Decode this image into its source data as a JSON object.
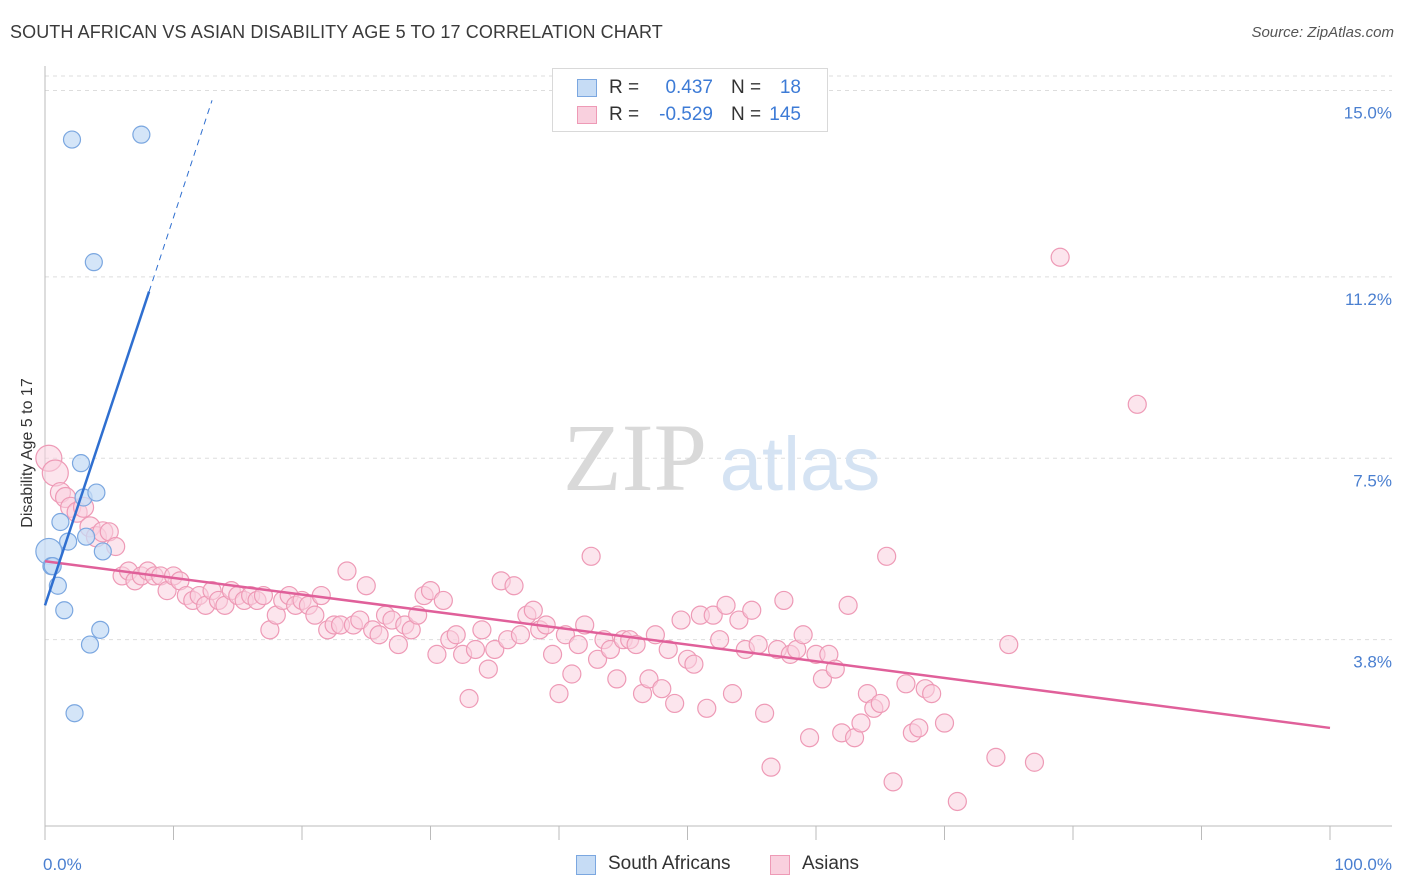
{
  "title": "SOUTH AFRICAN VS ASIAN DISABILITY AGE 5 TO 17 CORRELATION CHART",
  "source": "Source: ZipAtlas.com",
  "watermark": {
    "zip": "ZIP",
    "atlas": "atlas"
  },
  "legend": {
    "rows": [
      {
        "r_label": "R =",
        "r_value": "0.437",
        "n_label": "N =",
        "n_value": "18"
      },
      {
        "r_label": "R =",
        "r_value": "-0.529",
        "n_label": "N =",
        "n_value": "145"
      }
    ]
  },
  "bottom_legend": {
    "south_africans": "South Africans",
    "asians": "Asians"
  },
  "colors": {
    "south_african_fill": "#c6dcf5",
    "south_african_stroke": "#7ba7e0",
    "south_african_line": "#2f6fd0",
    "asian_fill": "#f9d0de",
    "asian_stroke": "#ee9ab6",
    "asian_line": "#e0609a",
    "tick_label": "#4a7fd0",
    "grid": "#dddddd"
  },
  "chart_data": {
    "type": "scatter",
    "xlabel": "",
    "ylabel": "Disability Age 5 to 17",
    "xlim": [
      0,
      100
    ],
    "ylim": [
      0,
      15.5
    ],
    "x_tick_labels": [
      "0.0%",
      "100.0%"
    ],
    "y_ticks": [
      {
        "value": 3.8,
        "label": "3.8%"
      },
      {
        "value": 7.5,
        "label": "7.5%"
      },
      {
        "value": 11.2,
        "label": "11.2%"
      },
      {
        "value": 15.0,
        "label": "15.0%"
      }
    ],
    "series": [
      {
        "name": "South Africans",
        "r": 0.437,
        "n": 18,
        "trend": {
          "x0": 0,
          "y0": 4.5,
          "x1": 8.1,
          "y1": 10.9,
          "dash_to_x": 13.0,
          "dash_to_y": 14.8
        },
        "points": [
          [
            0.3,
            5.6
          ],
          [
            0.5,
            5.3
          ],
          [
            0.6,
            5.3
          ],
          [
            1.0,
            4.9
          ],
          [
            1.2,
            6.2
          ],
          [
            1.5,
            4.4
          ],
          [
            1.8,
            5.8
          ],
          [
            2.1,
            14.0
          ],
          [
            2.8,
            7.4
          ],
          [
            3.0,
            6.7
          ],
          [
            3.2,
            5.9
          ],
          [
            3.5,
            3.7
          ],
          [
            3.8,
            11.5
          ],
          [
            4.0,
            6.8
          ],
          [
            4.3,
            4.0
          ],
          [
            4.5,
            5.6
          ],
          [
            7.5,
            14.1
          ],
          [
            2.3,
            2.3
          ]
        ]
      },
      {
        "name": "Asians",
        "r": -0.529,
        "n": 145,
        "trend": {
          "x0": 0,
          "y0": 5.4,
          "x1": 100,
          "y1": 2.0
        },
        "points": [
          [
            0.3,
            7.5
          ],
          [
            0.8,
            7.2
          ],
          [
            1.2,
            6.8
          ],
          [
            1.6,
            6.7
          ],
          [
            2.0,
            6.5
          ],
          [
            2.5,
            6.4
          ],
          [
            3.0,
            6.5
          ],
          [
            3.5,
            6.1
          ],
          [
            4.0,
            5.9
          ],
          [
            4.5,
            6.0
          ],
          [
            5.0,
            6.0
          ],
          [
            5.5,
            5.7
          ],
          [
            6.0,
            5.1
          ],
          [
            6.5,
            5.2
          ],
          [
            7.0,
            5.0
          ],
          [
            7.5,
            5.1
          ],
          [
            8.0,
            5.2
          ],
          [
            8.5,
            5.1
          ],
          [
            9.0,
            5.1
          ],
          [
            9.5,
            4.8
          ],
          [
            10.0,
            5.1
          ],
          [
            10.5,
            5.0
          ],
          [
            11.0,
            4.7
          ],
          [
            11.5,
            4.6
          ],
          [
            12.0,
            4.7
          ],
          [
            12.5,
            4.5
          ],
          [
            13.0,
            4.8
          ],
          [
            13.5,
            4.6
          ],
          [
            14.0,
            4.5
          ],
          [
            14.5,
            4.8
          ],
          [
            15.0,
            4.7
          ],
          [
            15.5,
            4.6
          ],
          [
            16.0,
            4.7
          ],
          [
            16.5,
            4.6
          ],
          [
            17.0,
            4.7
          ],
          [
            17.5,
            4.0
          ],
          [
            18.0,
            4.3
          ],
          [
            18.5,
            4.6
          ],
          [
            19.0,
            4.7
          ],
          [
            19.5,
            4.5
          ],
          [
            20.0,
            4.6
          ],
          [
            20.5,
            4.5
          ],
          [
            21.0,
            4.3
          ],
          [
            21.5,
            4.7
          ],
          [
            22.0,
            4.0
          ],
          [
            22.5,
            4.1
          ],
          [
            23.0,
            4.1
          ],
          [
            23.5,
            5.2
          ],
          [
            24.0,
            4.1
          ],
          [
            24.5,
            4.2
          ],
          [
            25.0,
            4.9
          ],
          [
            25.5,
            4.0
          ],
          [
            26.0,
            3.9
          ],
          [
            26.5,
            4.3
          ],
          [
            27.0,
            4.2
          ],
          [
            27.5,
            3.7
          ],
          [
            28.0,
            4.1
          ],
          [
            28.5,
            4.0
          ],
          [
            29.0,
            4.3
          ],
          [
            29.5,
            4.7
          ],
          [
            30.0,
            4.8
          ],
          [
            30.5,
            3.5
          ],
          [
            31.0,
            4.6
          ],
          [
            31.5,
            3.8
          ],
          [
            32.0,
            3.9
          ],
          [
            32.5,
            3.5
          ],
          [
            33.0,
            2.6
          ],
          [
            33.5,
            3.6
          ],
          [
            34.0,
            4.0
          ],
          [
            34.5,
            3.2
          ],
          [
            35.0,
            3.6
          ],
          [
            35.5,
            5.0
          ],
          [
            36.0,
            3.8
          ],
          [
            36.5,
            4.9
          ],
          [
            37.0,
            3.9
          ],
          [
            37.5,
            4.3
          ],
          [
            38.0,
            4.4
          ],
          [
            38.5,
            4.0
          ],
          [
            39.0,
            4.1
          ],
          [
            39.5,
            3.5
          ],
          [
            40.0,
            2.7
          ],
          [
            40.5,
            3.9
          ],
          [
            41.0,
            3.1
          ],
          [
            41.5,
            3.7
          ],
          [
            42.0,
            4.1
          ],
          [
            42.5,
            5.5
          ],
          [
            43.0,
            3.4
          ],
          [
            43.5,
            3.8
          ],
          [
            44.0,
            3.6
          ],
          [
            44.5,
            3.0
          ],
          [
            45.0,
            3.8
          ],
          [
            45.5,
            3.8
          ],
          [
            46.0,
            3.7
          ],
          [
            46.5,
            2.7
          ],
          [
            47.0,
            3.0
          ],
          [
            47.5,
            3.9
          ],
          [
            48.0,
            2.8
          ],
          [
            48.5,
            3.6
          ],
          [
            49.0,
            2.5
          ],
          [
            49.5,
            4.2
          ],
          [
            50.0,
            3.4
          ],
          [
            50.5,
            3.3
          ],
          [
            51.0,
            4.3
          ],
          [
            51.5,
            2.4
          ],
          [
            52.0,
            4.3
          ],
          [
            52.5,
            3.8
          ],
          [
            53.0,
            4.5
          ],
          [
            53.5,
            2.7
          ],
          [
            54.0,
            4.2
          ],
          [
            54.5,
            3.6
          ],
          [
            55.0,
            4.4
          ],
          [
            55.5,
            3.7
          ],
          [
            56.0,
            2.3
          ],
          [
            56.5,
            1.2
          ],
          [
            57.0,
            3.6
          ],
          [
            57.5,
            4.6
          ],
          [
            58.0,
            3.5
          ],
          [
            58.5,
            3.6
          ],
          [
            59.0,
            3.9
          ],
          [
            59.5,
            1.8
          ],
          [
            60.0,
            3.5
          ],
          [
            60.5,
            3.0
          ],
          [
            61.0,
            3.5
          ],
          [
            61.5,
            3.2
          ],
          [
            62.0,
            1.9
          ],
          [
            62.5,
            4.5
          ],
          [
            63.0,
            1.8
          ],
          [
            63.5,
            2.1
          ],
          [
            64.0,
            2.7
          ],
          [
            64.5,
            2.4
          ],
          [
            65.0,
            2.5
          ],
          [
            65.5,
            5.5
          ],
          [
            66.0,
            0.9
          ],
          [
            67.0,
            2.9
          ],
          [
            67.5,
            1.9
          ],
          [
            68.0,
            2.0
          ],
          [
            68.5,
            2.8
          ],
          [
            69.0,
            2.7
          ],
          [
            70.0,
            2.1
          ],
          [
            71.0,
            0.5
          ],
          [
            74.0,
            1.4
          ],
          [
            75.0,
            3.7
          ],
          [
            77.0,
            1.3
          ],
          [
            79.0,
            11.6
          ],
          [
            85.0,
            8.6
          ]
        ]
      }
    ]
  }
}
